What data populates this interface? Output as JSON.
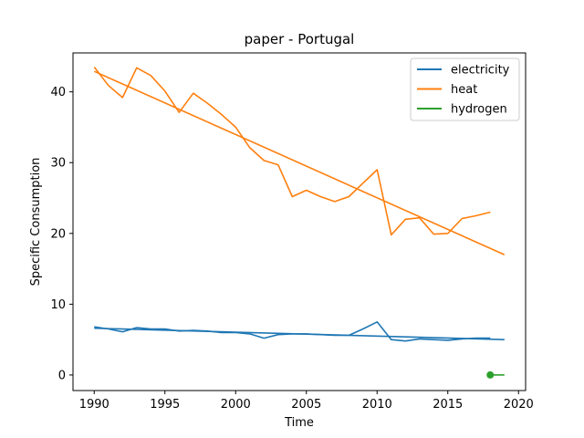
{
  "chart_data": {
    "type": "line",
    "title": "paper - Portugal",
    "xlabel": "Time",
    "ylabel": "Specific Consumption",
    "xlim": [
      1988.5,
      2020.5
    ],
    "ylim": [
      -2.2,
      45.5
    ],
    "xticks": [
      1990,
      1995,
      2000,
      2005,
      2010,
      2015,
      2020
    ],
    "yticks": [
      0,
      10,
      20,
      30,
      40
    ],
    "grid": false,
    "legend_position": "top-right",
    "series": [
      {
        "name": "electricity",
        "color": "#1f77b4",
        "x": [
          1990,
          1991,
          1992,
          1993,
          1994,
          1995,
          1996,
          1997,
          1998,
          1999,
          2000,
          2001,
          2002,
          2003,
          2004,
          2005,
          2006,
          2007,
          2008,
          2009,
          2010,
          2011,
          2012,
          2013,
          2014,
          2015,
          2016,
          2017,
          2018
        ],
        "y": [
          6.8,
          6.5,
          6.1,
          6.7,
          6.5,
          6.5,
          6.2,
          6.3,
          6.2,
          6.0,
          6.0,
          5.8,
          5.2,
          5.7,
          5.8,
          5.8,
          5.7,
          5.6,
          5.6,
          6.5,
          7.5,
          5.0,
          4.8,
          5.1,
          5.0,
          4.9,
          5.1,
          5.2,
          5.2
        ]
      },
      {
        "name": "heat",
        "color": "#ff7f0e",
        "x": [
          1990,
          1991,
          1992,
          1993,
          1994,
          1995,
          1996,
          1997,
          1998,
          1999,
          2000,
          2001,
          2002,
          2003,
          2004,
          2005,
          2006,
          2007,
          2008,
          2009,
          2010,
          2011,
          2012,
          2013,
          2014,
          2015,
          2016,
          2017,
          2018
        ],
        "y": [
          43.5,
          40.9,
          39.2,
          43.4,
          42.3,
          40.1,
          37.1,
          39.8,
          38.4,
          36.8,
          35.0,
          32.1,
          30.3,
          29.7,
          25.2,
          26.1,
          25.2,
          24.5,
          25.2,
          27.1,
          29.0,
          19.8,
          22.0,
          22.2,
          19.9,
          20.0,
          22.1,
          22.5,
          23.0
        ]
      },
      {
        "name": "hydrogen",
        "color": "#2ca02c",
        "x": [
          2018,
          2019
        ],
        "y": [
          0.0,
          0.0
        ]
      }
    ],
    "trendlines": [
      {
        "series": "electricity",
        "color": "#1f77b4",
        "x": [
          1990,
          2019
        ],
        "y": [
          6.6,
          5.0
        ]
      },
      {
        "series": "heat",
        "color": "#ff7f0e",
        "x": [
          1990,
          2019
        ],
        "y": [
          42.9,
          17.0
        ]
      }
    ],
    "markers": [
      {
        "series": "hydrogen",
        "color": "#2ca02c",
        "x": 2018,
        "y": 0.0
      }
    ]
  }
}
